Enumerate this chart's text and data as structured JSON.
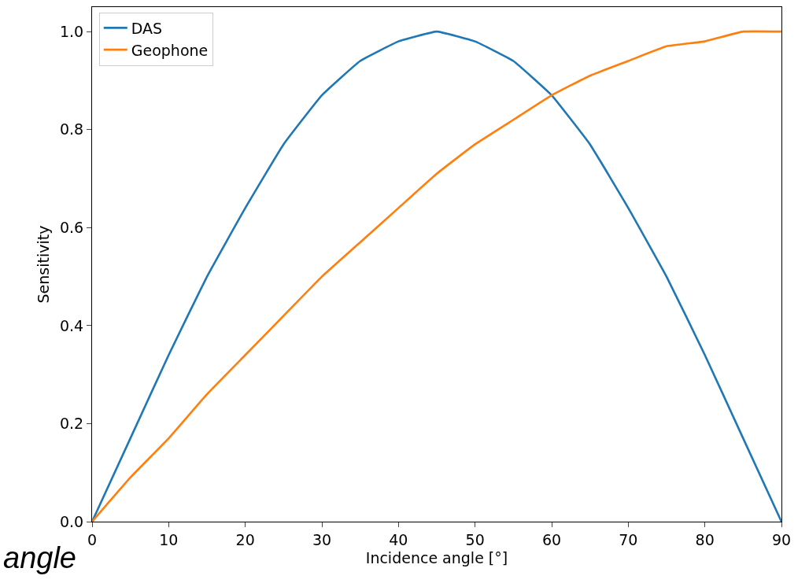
{
  "chart_data": {
    "type": "line",
    "xlabel": "Incidence angle [°]",
    "ylabel": "Sensitivity",
    "x": [
      0,
      5,
      10,
      15,
      20,
      25,
      30,
      35,
      40,
      45,
      50,
      55,
      60,
      65,
      70,
      75,
      80,
      85,
      90
    ],
    "series": [
      {
        "name": "DAS",
        "color": "#1f77b4",
        "values": [
          0,
          0.17,
          0.34,
          0.5,
          0.64,
          0.77,
          0.87,
          0.94,
          0.98,
          1,
          0.98,
          0.94,
          0.87,
          0.77,
          0.64,
          0.5,
          0.34,
          0.17,
          0
        ]
      },
      {
        "name": "Geophone",
        "color": "#ff7f0e",
        "values": [
          0,
          0.09,
          0.17,
          0.26,
          0.34,
          0.42,
          0.5,
          0.57,
          0.64,
          0.71,
          0.77,
          0.82,
          0.87,
          0.91,
          0.94,
          0.97,
          0.98,
          1,
          1
        ]
      }
    ],
    "xlim": [
      0,
      90
    ],
    "xticks": [
      0,
      10,
      20,
      30,
      40,
      50,
      60,
      70,
      80,
      90
    ],
    "ylim": [
      0,
      1.05
    ],
    "yticks": [
      {
        "value": 0,
        "label": "0.0"
      },
      {
        "value": 0.2,
        "label": "0.2"
      },
      {
        "value": 0.4,
        "label": "0.4"
      },
      {
        "value": 0.6,
        "label": "0.6"
      },
      {
        "value": 0.8,
        "label": "0.8"
      },
      {
        "value": 1,
        "label": "1.0"
      }
    ],
    "grid": false,
    "legend": "top left",
    "marker": "none",
    "line_style": "solid",
    "annotations": [
      "angle"
    ]
  }
}
